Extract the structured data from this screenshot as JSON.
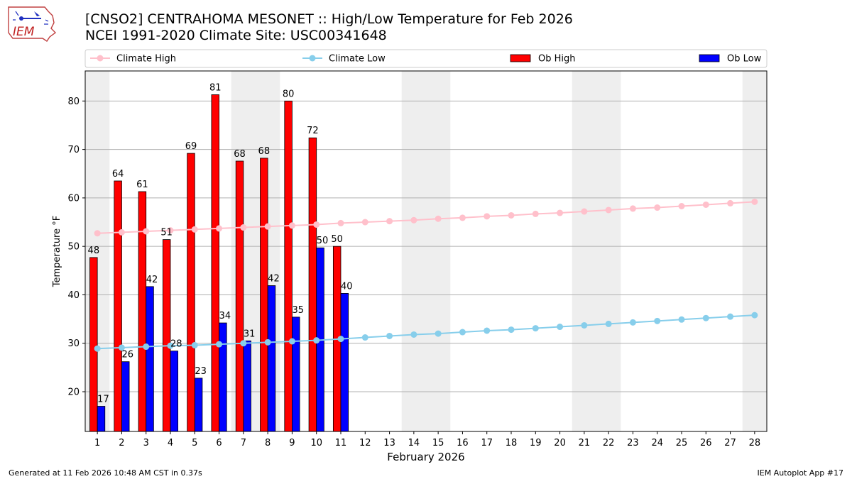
{
  "header": {
    "title_line1": "[CNSO2] CENTRAHOMA MESONET :: High/Low Temperature for Feb 2026",
    "title_line2": "NCEI 1991-2020 Climate Site: USC00341648",
    "logo_text": "IEM"
  },
  "footer": {
    "generated": "Generated at 11 Feb 2026 10:48 AM CST in 0.37s",
    "app": "IEM Autoplot App #17"
  },
  "colors": {
    "ob_high": "#ff0000",
    "ob_low": "#0000ff",
    "climate_high": "#ffc0cb",
    "climate_low": "#87ceeb",
    "weekend_shade": "#eeeeee",
    "grid": "#b0b0b0"
  },
  "chart_data": {
    "type": "bar",
    "xlabel": "February 2026",
    "ylabel": "Temperature °F",
    "ylim": [
      11.8,
      86.2
    ],
    "xlim": [
      0.5,
      28.5
    ],
    "yticks": [
      20,
      30,
      40,
      50,
      60,
      70,
      80
    ],
    "grid": "horizontal",
    "legend_position": "top",
    "days": [
      1,
      2,
      3,
      4,
      5,
      6,
      7,
      8,
      9,
      10,
      11,
      12,
      13,
      14,
      15,
      16,
      17,
      18,
      19,
      20,
      21,
      22,
      23,
      24,
      25,
      26,
      27,
      28
    ],
    "shaded_days": [
      1,
      7,
      8,
      14,
      15,
      21,
      22,
      28
    ],
    "legend": [
      "Climate High",
      "Climate Low",
      "Ob High",
      "Ob Low"
    ],
    "series": [
      {
        "name": "Ob High",
        "kind": "bar",
        "values": [
          47.7,
          63.5,
          61.3,
          51.4,
          69.2,
          81.3,
          67.6,
          68.2,
          80.0,
          72.4,
          50.0
        ]
      },
      {
        "name": "Ob Low",
        "kind": "bar",
        "values": [
          17.0,
          26.2,
          41.7,
          28.4,
          22.8,
          34.2,
          30.5,
          41.9,
          35.4,
          49.7,
          40.3
        ]
      },
      {
        "name": "Climate High",
        "kind": "line",
        "values": [
          52.7,
          52.9,
          53.1,
          53.3,
          53.5,
          53.7,
          53.9,
          54.1,
          54.3,
          54.5,
          54.8,
          55.0,
          55.2,
          55.4,
          55.7,
          55.9,
          56.2,
          56.4,
          56.7,
          56.9,
          57.2,
          57.5,
          57.8,
          58.0,
          58.3,
          58.6,
          58.9,
          59.2
        ]
      },
      {
        "name": "Climate Low",
        "kind": "line",
        "values": [
          28.9,
          29.1,
          29.3,
          29.5,
          29.6,
          29.8,
          30.0,
          30.2,
          30.4,
          30.6,
          30.9,
          31.2,
          31.5,
          31.8,
          32.0,
          32.3,
          32.6,
          32.8,
          33.1,
          33.4,
          33.7,
          34.0,
          34.3,
          34.6,
          34.9,
          35.2,
          35.5,
          35.8
        ]
      }
    ],
    "bar_labels_high": [
      "48",
      "64",
      "61",
      "51",
      "69",
      "81",
      "68",
      "68",
      "80",
      "72",
      "50"
    ],
    "bar_labels_low": [
      "17",
      "26",
      "42",
      "28",
      "23",
      "34",
      "31",
      "42",
      "35",
      "50",
      "40"
    ]
  }
}
